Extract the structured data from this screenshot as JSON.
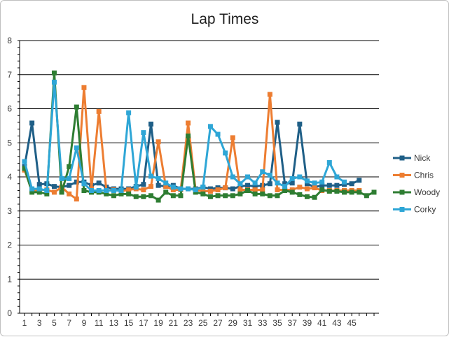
{
  "chart_data": {
    "type": "line",
    "title": "Lap Times",
    "xlabel": "",
    "ylabel": "",
    "ylim": [
      0,
      8
    ],
    "yticks": [
      0,
      1,
      2,
      3,
      4,
      5,
      6,
      7,
      8
    ],
    "xlim": [
      1,
      48
    ],
    "xticks": [
      1,
      3,
      5,
      7,
      9,
      11,
      13,
      15,
      17,
      19,
      21,
      23,
      25,
      27,
      29,
      31,
      33,
      35,
      37,
      39,
      41,
      43,
      45
    ],
    "grid": "horizontal",
    "legend_position": "right",
    "series": [
      {
        "name": "Nick",
        "color": "#1f5f87",
        "values": [
          4.3,
          5.58,
          3.78,
          3.8,
          3.72,
          3.7,
          3.75,
          3.85,
          3.85,
          3.75,
          3.82,
          3.7,
          3.65,
          3.65,
          3.65,
          3.72,
          3.78,
          5.55,
          3.75,
          3.72,
          3.75,
          3.65,
          3.65,
          3.65,
          3.7,
          3.65,
          3.68,
          3.68,
          3.65,
          3.72,
          3.75,
          3.72,
          3.75,
          3.8,
          5.6,
          3.8,
          3.82,
          5.55,
          3.8,
          3.7,
          3.75,
          3.75,
          3.75,
          3.78,
          3.8,
          3.9
        ]
      },
      {
        "name": "Chris",
        "color": "#ed7d31",
        "values": [
          4.2,
          3.6,
          3.62,
          3.62,
          3.55,
          3.7,
          3.5,
          3.35,
          6.62,
          3.65,
          5.92,
          3.6,
          3.62,
          3.58,
          3.62,
          3.65,
          3.62,
          3.72,
          5.03,
          3.72,
          3.62,
          3.62,
          5.58,
          3.62,
          3.58,
          3.58,
          3.62,
          3.68,
          5.15,
          3.62,
          3.62,
          3.62,
          3.62,
          6.42,
          3.62,
          3.62,
          3.62,
          3.7,
          3.65,
          3.68,
          3.6,
          3.6,
          3.6,
          3.6,
          3.6,
          3.6
        ]
      },
      {
        "name": "Woody",
        "color": "#2e7d32",
        "values": [
          4.25,
          3.55,
          3.55,
          3.5,
          7.05,
          3.55,
          4.3,
          6.05,
          3.6,
          3.55,
          3.55,
          3.5,
          3.45,
          3.5,
          3.5,
          3.42,
          3.42,
          3.45,
          3.32,
          3.55,
          3.45,
          3.45,
          5.2,
          3.55,
          3.5,
          3.42,
          3.45,
          3.45,
          3.45,
          3.5,
          3.6,
          3.5,
          3.5,
          3.45,
          3.45,
          3.6,
          3.55,
          3.48,
          3.42,
          3.4,
          3.62,
          3.58,
          3.58,
          3.55,
          3.55,
          3.55,
          3.45,
          3.55
        ]
      },
      {
        "name": "Corky",
        "color": "#2ea6d6",
        "values": [
          4.45,
          3.65,
          3.65,
          3.6,
          6.78,
          3.95,
          3.95,
          4.85,
          3.8,
          3.6,
          3.6,
          3.6,
          3.6,
          3.6,
          5.88,
          3.7,
          5.3,
          4.02,
          3.95,
          3.82,
          3.7,
          3.65,
          3.65,
          3.62,
          3.7,
          5.48,
          5.25,
          4.7,
          4.0,
          3.8,
          4.0,
          3.82,
          4.15,
          4.05,
          3.82,
          3.72,
          3.95,
          4.0,
          3.88,
          3.82,
          3.85,
          4.42,
          4.0,
          3.85
        ]
      }
    ]
  }
}
